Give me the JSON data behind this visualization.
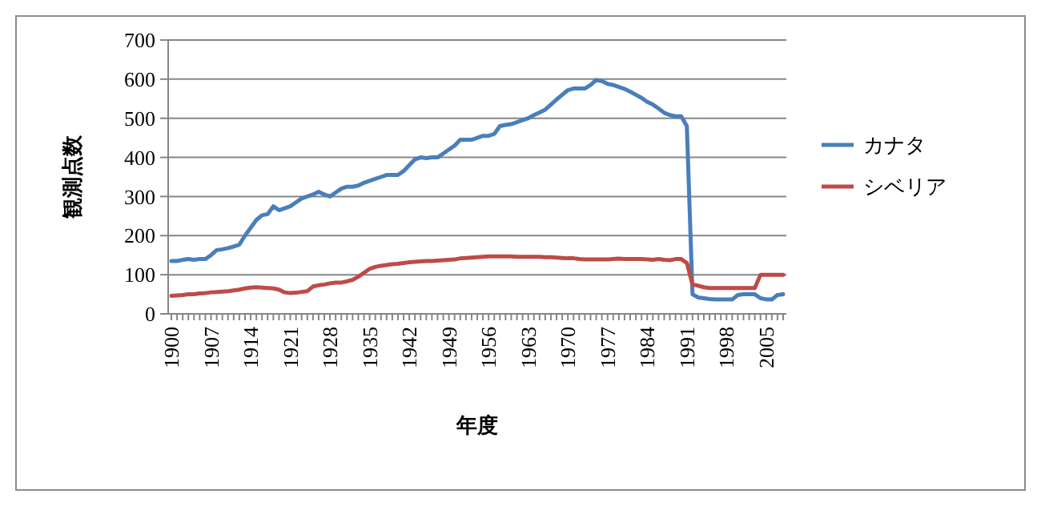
{
  "chart_data": {
    "type": "line",
    "xlabel": "年度",
    "ylabel": "観測点数",
    "categories": [
      "1900",
      null,
      null,
      null,
      null,
      null,
      null,
      "1907",
      null,
      null,
      null,
      null,
      null,
      null,
      "1914",
      null,
      null,
      null,
      null,
      null,
      null,
      "1921",
      null,
      null,
      null,
      null,
      null,
      null,
      "1928",
      null,
      null,
      null,
      null,
      null,
      null,
      "1935",
      null,
      null,
      null,
      null,
      null,
      null,
      "1942",
      null,
      null,
      null,
      null,
      null,
      null,
      "1949",
      null,
      null,
      null,
      null,
      null,
      null,
      "1956",
      null,
      null,
      null,
      null,
      null,
      null,
      "1963",
      null,
      null,
      null,
      null,
      null,
      null,
      "1970",
      null,
      null,
      null,
      null,
      null,
      null,
      "1977",
      null,
      null,
      null,
      null,
      null,
      null,
      "1984",
      null,
      null,
      null,
      null,
      null,
      null,
      "1991",
      null,
      null,
      null,
      null,
      null,
      null,
      "1998",
      null,
      null,
      null,
      null,
      null,
      null,
      "2005",
      null,
      null,
      null
    ],
    "series": [
      {
        "name": "カナタ",
        "color": "#4a7ebb",
        "values": [
          135,
          135,
          138,
          140,
          138,
          140,
          140,
          150,
          163,
          165,
          168,
          172,
          177,
          200,
          220,
          240,
          252,
          255,
          275,
          265,
          270,
          275,
          285,
          295,
          300,
          305,
          312,
          305,
          300,
          310,
          320,
          325,
          325,
          328,
          335,
          340,
          345,
          350,
          355,
          355,
          355,
          365,
          380,
          395,
          400,
          398,
          400,
          400,
          410,
          420,
          430,
          445,
          445,
          445,
          450,
          455,
          455,
          460,
          480,
          483,
          485,
          490,
          495,
          500,
          508,
          515,
          522,
          535,
          548,
          560,
          572,
          576,
          576,
          576,
          585,
          598,
          595,
          588,
          585,
          580,
          575,
          568,
          560,
          552,
          542,
          535,
          525,
          514,
          508,
          505,
          505,
          480,
          50,
          42,
          40,
          38,
          37,
          37,
          37,
          37,
          48,
          50,
          50,
          50,
          40,
          37,
          37,
          48,
          50
        ]
      },
      {
        "name": "シベリア",
        "color": "#be4b48",
        "values": [
          46,
          47,
          48,
          50,
          50,
          52,
          53,
          55,
          56,
          57,
          58,
          60,
          62,
          65,
          67,
          68,
          67,
          66,
          65,
          62,
          55,
          53,
          54,
          56,
          58,
          70,
          73,
          75,
          78,
          80,
          80,
          83,
          87,
          95,
          105,
          115,
          120,
          123,
          125,
          127,
          128,
          130,
          132,
          133,
          134,
          135,
          135,
          136,
          137,
          138,
          139,
          142,
          143,
          144,
          145,
          146,
          147,
          147,
          147,
          147,
          147,
          146,
          146,
          146,
          146,
          146,
          145,
          145,
          144,
          143,
          142,
          142,
          140,
          139,
          139,
          139,
          139,
          139,
          140,
          141,
          140,
          140,
          140,
          140,
          139,
          138,
          140,
          138,
          137,
          140,
          140,
          130,
          75,
          72,
          68,
          66,
          66,
          66,
          66,
          66,
          66,
          66,
          66,
          66,
          100,
          100,
          100,
          100,
          100
        ]
      }
    ],
    "ylim": [
      0,
      700
    ],
    "yticks": [
      0,
      100,
      200,
      300,
      400,
      500,
      600,
      700
    ],
    "grid": "y",
    "legend": "right",
    "marker": "none",
    "line_style": "solid"
  }
}
